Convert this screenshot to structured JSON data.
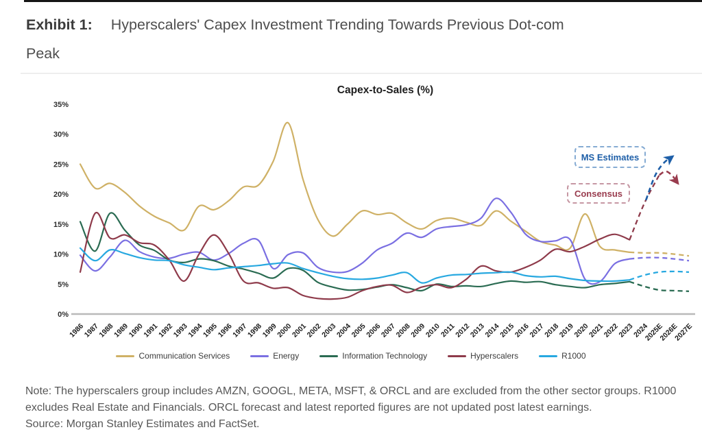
{
  "header": {
    "exhibit_label": "Exhibit 1:",
    "title_lines": [
      "Hyperscalers' Capex Investment Trending Towards Previous Dot-com",
      "Peak"
    ]
  },
  "footer": {
    "note": "Note: The hyperscalers group includes AMZN, GOOGL, META, MSFT, & ORCL and are excluded from the other sector groups. R1000 excludes Real Estate and Financials. ORCL forecast and latest reported figures are not updated post latest earnings.",
    "source": "Source: Morgan Stanley Estimates and FactSet."
  },
  "chart_data": {
    "type": "line",
    "title": "Capex-to-Sales (%)",
    "xlabel": "",
    "ylabel": "",
    "ylim": [
      0,
      35
    ],
    "y_ticks": [
      "0%",
      "5%",
      "10%",
      "15%",
      "20%",
      "25%",
      "30%",
      "35%"
    ],
    "grid": false,
    "legend_position": "bottom",
    "axis_color": "#b9b9b9",
    "dashed_from_index": 37,
    "x_labels": [
      "1986",
      "1987",
      "1988",
      "1989",
      "1990",
      "1991",
      "1992",
      "1993",
      "1994",
      "1995",
      "1996",
      "1997",
      "1998",
      "1999",
      "2000",
      "2001",
      "2002",
      "2003",
      "2004",
      "2005",
      "2006",
      "2007",
      "2008",
      "2009",
      "2010",
      "2011",
      "2012",
      "2013",
      "2014",
      "2015",
      "2016",
      "2017",
      "2018",
      "2019",
      "2020",
      "2021",
      "2022",
      "2023",
      "2024",
      "2025E",
      "2026E",
      "2027E"
    ],
    "series": [
      {
        "name": "Communication Services",
        "color": "#cfb166",
        "values": [
          25.0,
          21.0,
          21.8,
          20.3,
          18.0,
          16.3,
          15.2,
          14.0,
          18.0,
          17.4,
          18.9,
          21.2,
          21.5,
          25.5,
          31.9,
          22.5,
          15.8,
          13.0,
          15.0,
          17.2,
          16.6,
          16.8,
          15.2,
          14.2,
          15.6,
          16.0,
          15.3,
          14.8,
          17.2,
          15.5,
          13.8,
          12.1,
          11.5,
          11.0,
          16.7,
          11.3,
          10.7,
          10.3,
          10.2,
          10.2,
          10.0,
          9.7
        ]
      },
      {
        "name": "Energy",
        "color": "#7a6fe2",
        "values": [
          9.8,
          7.2,
          9.5,
          12.3,
          10.4,
          9.5,
          9.3,
          10.0,
          10.3,
          9.0,
          10.1,
          11.8,
          12.3,
          7.6,
          9.9,
          10.2,
          7.8,
          7.0,
          7.1,
          8.5,
          10.7,
          11.8,
          13.5,
          12.8,
          14.2,
          14.6,
          14.9,
          16.0,
          19.3,
          17.0,
          13.3,
          12.1,
          12.2,
          12.4,
          5.8,
          5.4,
          8.4,
          9.2,
          9.4,
          9.4,
          9.2,
          8.9
        ]
      },
      {
        "name": "Information Technology",
        "color": "#2a6b52",
        "values": [
          15.4,
          10.5,
          16.8,
          14.0,
          11.5,
          10.6,
          9.0,
          8.6,
          9.2,
          8.9,
          8.0,
          7.5,
          6.8,
          6.0,
          7.6,
          7.3,
          5.3,
          4.5,
          4.0,
          4.1,
          4.5,
          4.9,
          4.4,
          3.9,
          5.0,
          4.6,
          4.7,
          4.6,
          5.1,
          5.5,
          5.3,
          5.4,
          4.9,
          4.6,
          4.4,
          4.9,
          5.1,
          5.4,
          4.6,
          4.0,
          3.9,
          3.8
        ]
      },
      {
        "name": "Hyperscalers",
        "color": "#8e3a4a",
        "values": [
          7.0,
          16.8,
          12.7,
          13.2,
          11.9,
          11.5,
          9.0,
          5.5,
          10.0,
          13.2,
          10.1,
          5.5,
          5.2,
          4.3,
          4.4,
          3.1,
          2.6,
          2.5,
          2.8,
          3.9,
          4.6,
          4.8,
          3.6,
          4.5,
          4.9,
          4.4,
          5.8,
          8.0,
          7.2,
          7.0,
          7.8,
          9.0,
          10.8,
          10.4,
          11.3,
          12.5,
          13.3,
          12.4,
          18.5,
          23.2,
          null,
          null
        ]
      },
      {
        "name": "R1000",
        "color": "#27a8e0",
        "values": [
          11.0,
          8.9,
          10.7,
          10.1,
          9.4,
          9.0,
          8.9,
          8.2,
          7.8,
          7.4,
          7.7,
          7.9,
          8.1,
          8.4,
          8.5,
          7.6,
          6.9,
          6.3,
          5.9,
          5.8,
          6.0,
          6.5,
          6.9,
          5.2,
          6.0,
          6.5,
          6.6,
          6.8,
          6.9,
          7.0,
          6.4,
          6.2,
          6.3,
          5.9,
          5.6,
          5.5,
          5.5,
          5.7,
          6.5,
          7.0,
          7.1,
          7.0
        ]
      }
    ],
    "estimate_arrows": [
      {
        "name": "ms-estimates",
        "color": "#1e5fa8",
        "points": [
          [
            38.1,
            19.0
          ],
          [
            38.7,
            23.0
          ],
          [
            39.3,
            25.2
          ],
          [
            39.9,
            26.3
          ]
        ]
      },
      {
        "name": "consensus",
        "color": "#993c4e",
        "points": [
          [
            39.0,
            23.2
          ],
          [
            39.45,
            23.8
          ],
          [
            39.9,
            23.0
          ],
          [
            40.25,
            21.8
          ]
        ]
      }
    ],
    "annotations": [
      {
        "label": "MS Estimates",
        "color": "#1e5fa8"
      },
      {
        "label": "Consensus",
        "color": "#993c4e"
      }
    ]
  }
}
